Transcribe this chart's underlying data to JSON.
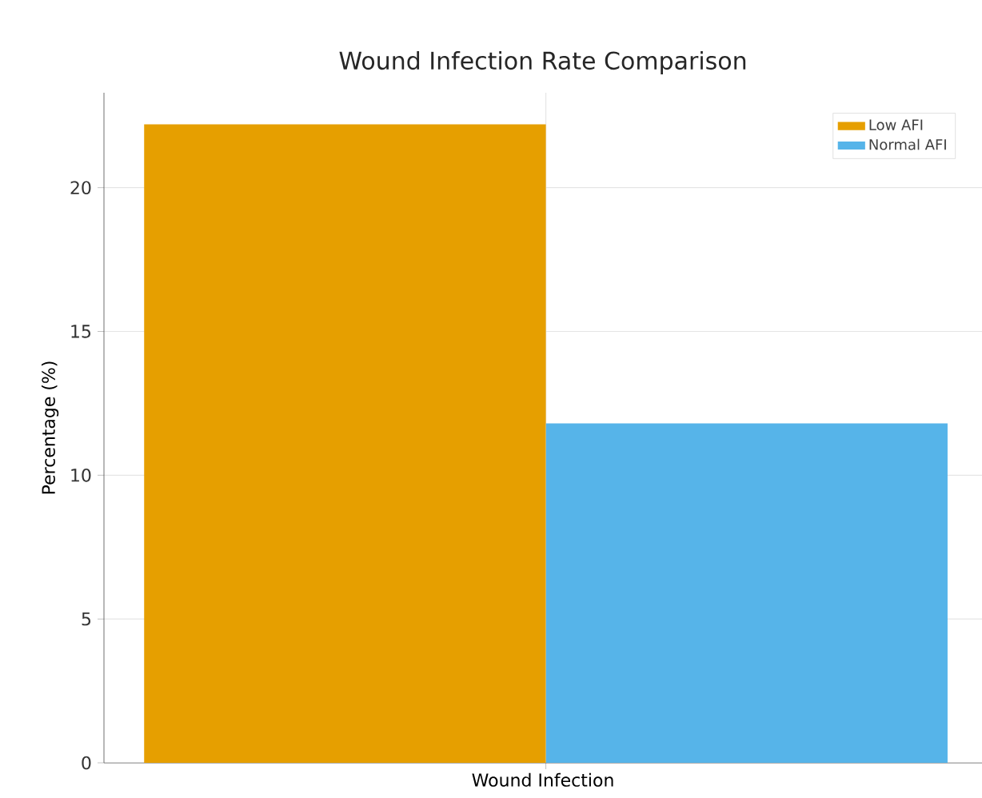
{
  "chart_data": {
    "type": "bar",
    "title": "Wound Infection Rate Comparison",
    "xlabel": "Wound Infection",
    "ylabel": "Percentage (%)",
    "categories": [
      null
    ],
    "series": [
      {
        "name": "Low AFI",
        "color": "#e69f00",
        "values": [
          22.2
        ]
      },
      {
        "name": "Normal AFI",
        "color": "#56b4e9",
        "values": [
          11.8
        ]
      }
    ],
    "ylim": [
      0,
      23.3
    ],
    "yticks": [
      0,
      5,
      10,
      15,
      20
    ],
    "grid": true,
    "legend": "top right"
  }
}
